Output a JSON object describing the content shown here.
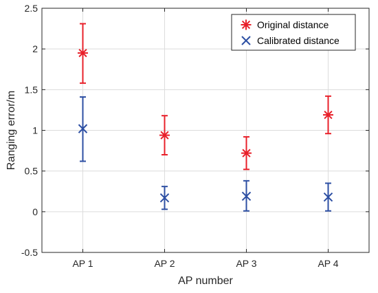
{
  "chart_data": {
    "type": "scatter",
    "xlabel": "AP number",
    "ylabel": "Ranging error/m",
    "categories": [
      "AP 1",
      "AP 2",
      "AP 3",
      "AP 4"
    ],
    "ylim": [
      -0.5,
      2.5
    ],
    "yticks": [
      "-0.5",
      "0",
      "0.5",
      "1",
      "1.5",
      "2",
      "2.5"
    ],
    "grid": true,
    "legend_position": "top-right",
    "series": [
      {
        "name": "Original distance",
        "color": "#e8202a",
        "marker": "asterisk",
        "values": [
          1.95,
          0.94,
          0.72,
          1.19
        ],
        "lower": [
          1.58,
          0.7,
          0.52,
          0.96
        ],
        "upper": [
          2.31,
          1.18,
          0.92,
          1.42
        ]
      },
      {
        "name": "Calibrated distance",
        "color": "#2d4fa3",
        "marker": "x",
        "values": [
          1.02,
          0.17,
          0.19,
          0.18
        ],
        "lower": [
          0.62,
          0.03,
          0.01,
          0.01
        ],
        "upper": [
          1.41,
          0.31,
          0.38,
          0.35
        ]
      }
    ]
  }
}
